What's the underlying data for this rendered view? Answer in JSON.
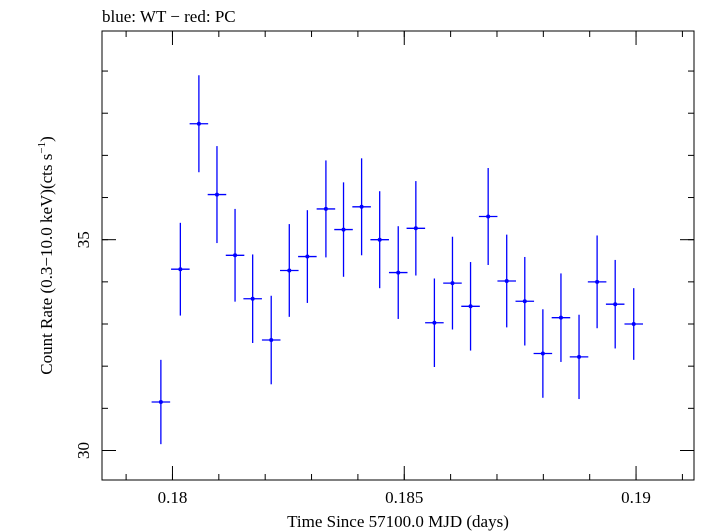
{
  "chart_data": {
    "type": "scatter",
    "title": "blue: WT − red: PC",
    "xlabel": "Time Since 57100.0 MJD (days)",
    "ylabel_main": "Count Rate (0.3−10.0 keV)(cts s",
    "ylabel_exp": "−1",
    "ylabel_close": ")",
    "xlim": [
      0.17848,
      0.19125
    ],
    "ylim": [
      29.3,
      39.95
    ],
    "x_ticks": [
      0.18,
      0.185,
      0.19
    ],
    "x_tick_labels": [
      "0.18",
      "0.185",
      "0.19"
    ],
    "y_ticks": [
      30,
      35
    ],
    "y_tick_labels": [
      "30",
      "35"
    ],
    "x_minor_step": 0.001,
    "y_minor_step": 1,
    "x_halfwidth": 0.0002,
    "series": [
      {
        "color": "#0000ff",
        "x": [
          0.17975,
          0.18017,
          0.18057,
          0.18096,
          0.18135,
          0.18173,
          0.18213,
          0.18252,
          0.18291,
          0.18331,
          0.18369,
          0.18408,
          0.18447,
          0.18487,
          0.18525,
          0.18565,
          0.18604,
          0.18643,
          0.18681,
          0.18721,
          0.1876,
          0.18799,
          0.18838,
          0.18877,
          0.18916,
          0.18955,
          0.18995
        ],
        "y": [
          31.15,
          34.3,
          37.75,
          36.07,
          34.63,
          33.6,
          32.62,
          34.27,
          34.6,
          35.73,
          35.24,
          35.78,
          35.0,
          34.22,
          35.27,
          33.03,
          33.97,
          33.42,
          35.55,
          34.02,
          33.54,
          32.3,
          33.15,
          32.22,
          34.0,
          33.47,
          33.0
        ],
        "err": [
          1.0,
          1.1,
          1.15,
          1.15,
          1.1,
          1.05,
          1.05,
          1.1,
          1.1,
          1.15,
          1.12,
          1.15,
          1.15,
          1.1,
          1.12,
          1.05,
          1.1,
          1.05,
          1.15,
          1.1,
          1.05,
          1.05,
          1.05,
          1.0,
          1.1,
          1.05,
          0.85
        ]
      }
    ]
  }
}
